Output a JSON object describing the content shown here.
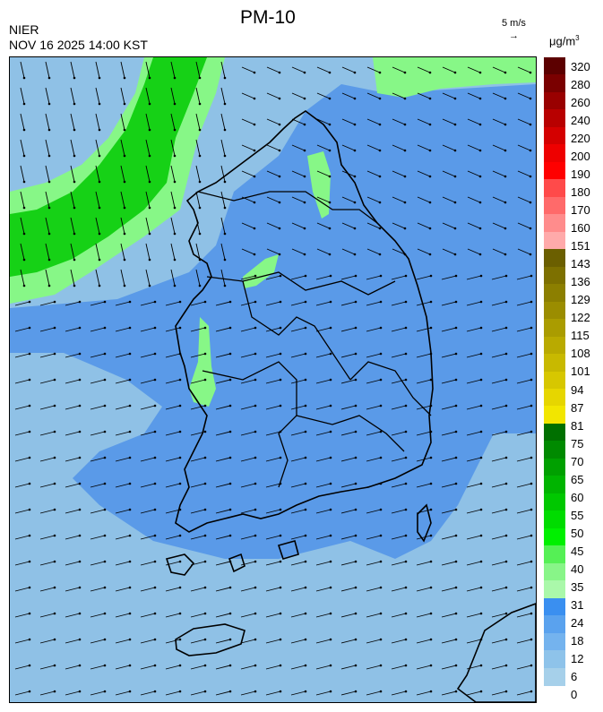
{
  "header": {
    "agency": "NIER",
    "datetime": "NOV 16 2025 14:00 KST",
    "title": "PM-10"
  },
  "wind_reference": {
    "label": "5 m/s",
    "arrow": "→"
  },
  "colorbar": {
    "unit_base": "μg/m",
    "unit_exp": "3",
    "labels": [
      "320",
      "280",
      "260",
      "240",
      "220",
      "200",
      "190",
      "180",
      "170",
      "160",
      "151",
      "143",
      "136",
      "129",
      "122",
      "115",
      "108",
      "101",
      "94",
      "87",
      "81",
      "75",
      "70",
      "65",
      "60",
      "55",
      "50",
      "45",
      "40",
      "35",
      "31",
      "24",
      "18",
      "12",
      "6",
      "0"
    ],
    "colors": [
      "#5c0000",
      "#7a0000",
      "#990000",
      "#b80000",
      "#d40000",
      "#ee0000",
      "#ff0000",
      "#ff4a4a",
      "#ff6a6a",
      "#ff8c8c",
      "#ffaaaa",
      "#6b5f00",
      "#7d7000",
      "#8c7f00",
      "#9b8d00",
      "#aa9c00",
      "#b9aa00",
      "#c8b900",
      "#d7c700",
      "#e6d600",
      "#f2e600",
      "#007000",
      "#008a00",
      "#00a000",
      "#00b400",
      "#00c800",
      "#00dc00",
      "#00f000",
      "#55f055",
      "#88f588",
      "#aaf8aa",
      "#3a8ff0",
      "#5aa2ee",
      "#74b3ee",
      "#8ec3ea",
      "#a6d0ea"
    ]
  },
  "map": {
    "ocean_color": "#8fc1e6",
    "land_color": "#5a9ae8",
    "high_zone_color": "#16d116",
    "mid_zone_color": "#87f787",
    "coast_color": "#000000"
  }
}
